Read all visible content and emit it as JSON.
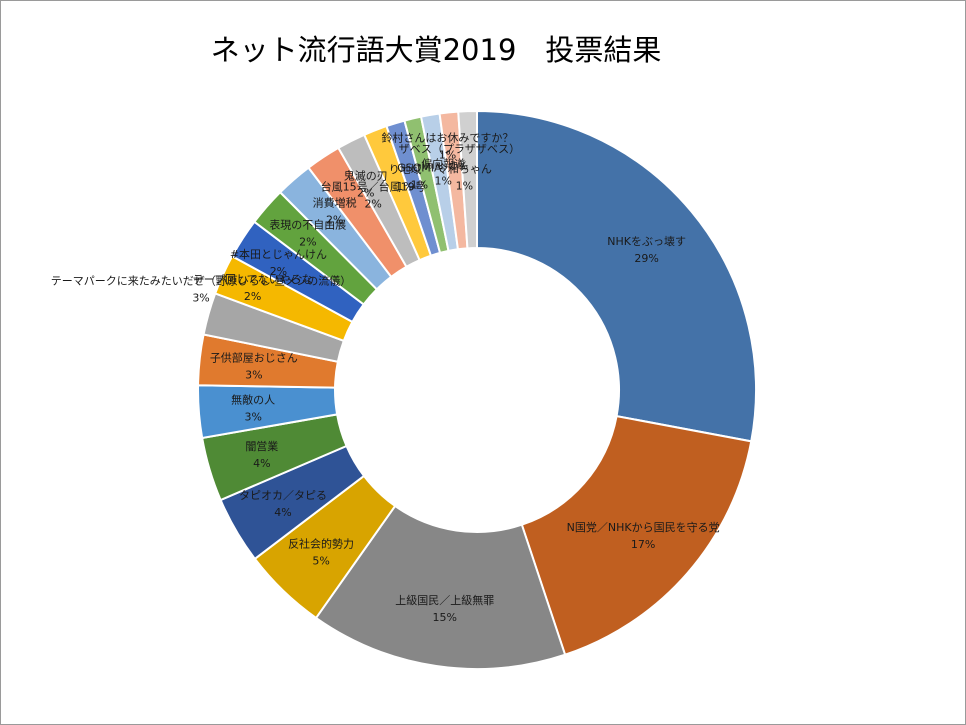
{
  "chart_data": {
    "type": "pie",
    "variant": "donut",
    "title": "ネット流行語大賞2019　投票結果",
    "legend": "none",
    "slices": [
      {
        "label": "NHKをぶっ壊す",
        "pct_label": "29%",
        "value": 28.7,
        "color": "#4472a8"
      },
      {
        "label": "N国党／NHKから国民を守る党",
        "pct_label": "17%",
        "value": 17.4,
        "color": "#c05f20"
      },
      {
        "label": "上級国民／上級無罪",
        "pct_label": "15%",
        "value": 15.3,
        "color": "#878787"
      },
      {
        "label": "反社会的勢力",
        "pct_label": "5%",
        "value": 5.0,
        "color": "#d8a400"
      },
      {
        "label": "タピオカ／タピる",
        "pct_label": "4%",
        "value": 4.0,
        "color": "#2f5396"
      },
      {
        "label": "闇営業",
        "pct_label": "4%",
        "value": 3.8,
        "color": "#4f8a35"
      },
      {
        "label": "無敵の人",
        "pct_label": "3%",
        "value": 3.1,
        "color": "#4a90d0"
      },
      {
        "label": "子供部屋おじさん",
        "pct_label": "3%",
        "value": 3.0,
        "color": "#e07a2e"
      },
      {
        "label": "テーマパークに来たみたいだぜ（野原ひろし 昼メシの流儀）",
        "pct_label": "3%",
        "value": 2.5,
        "color": "#a6a6a6"
      },
      {
        "label": "テープ回してないやろな",
        "pct_label": "2%",
        "value": 2.4,
        "color": "#f5b800"
      },
      {
        "label": "#本田とじゃんけん",
        "pct_label": "2%",
        "value": 2.4,
        "color": "#3062c0"
      },
      {
        "label": "表現の不自由展",
        "pct_label": "2%",
        "value": 2.3,
        "color": "#62a33e"
      },
      {
        "label": "消費増税",
        "pct_label": "2%",
        "value": 2.2,
        "color": "#8ab4de"
      },
      {
        "label": "台風15号／台風19号",
        "pct_label": "2%",
        "value": 2.1,
        "color": "#f0906a"
      },
      {
        "label": "鬼滅の刃",
        "pct_label": "2%",
        "value": 1.7,
        "color": "#bdbdbd"
      },
      {
        "label": "り地域",
        "pct_label": "1%",
        "value": 1.4,
        "color": "#ffc93c"
      },
      {
        "label": "GSOMIA",
        "pct_label": "1%",
        "value": 1.1,
        "color": "#6f8fd0"
      },
      {
        "label": "偏向報道",
        "pct_label": "1%",
        "value": 1.0,
        "color": "#90c070"
      },
      {
        "label": "ザベス（プラザザベス）",
        "pct_label": "1%",
        "value": 1.1,
        "color": "#b8cfe8"
      },
      {
        "label": "令和ちゃん",
        "pct_label": "1%",
        "value": 1.1,
        "color": "#f4b8a0"
      },
      {
        "label": "鈴村さんはお休みですか？",
        "pct_label": "1%",
        "value": 1.1,
        "color": "#d0d0d0"
      }
    ]
  }
}
